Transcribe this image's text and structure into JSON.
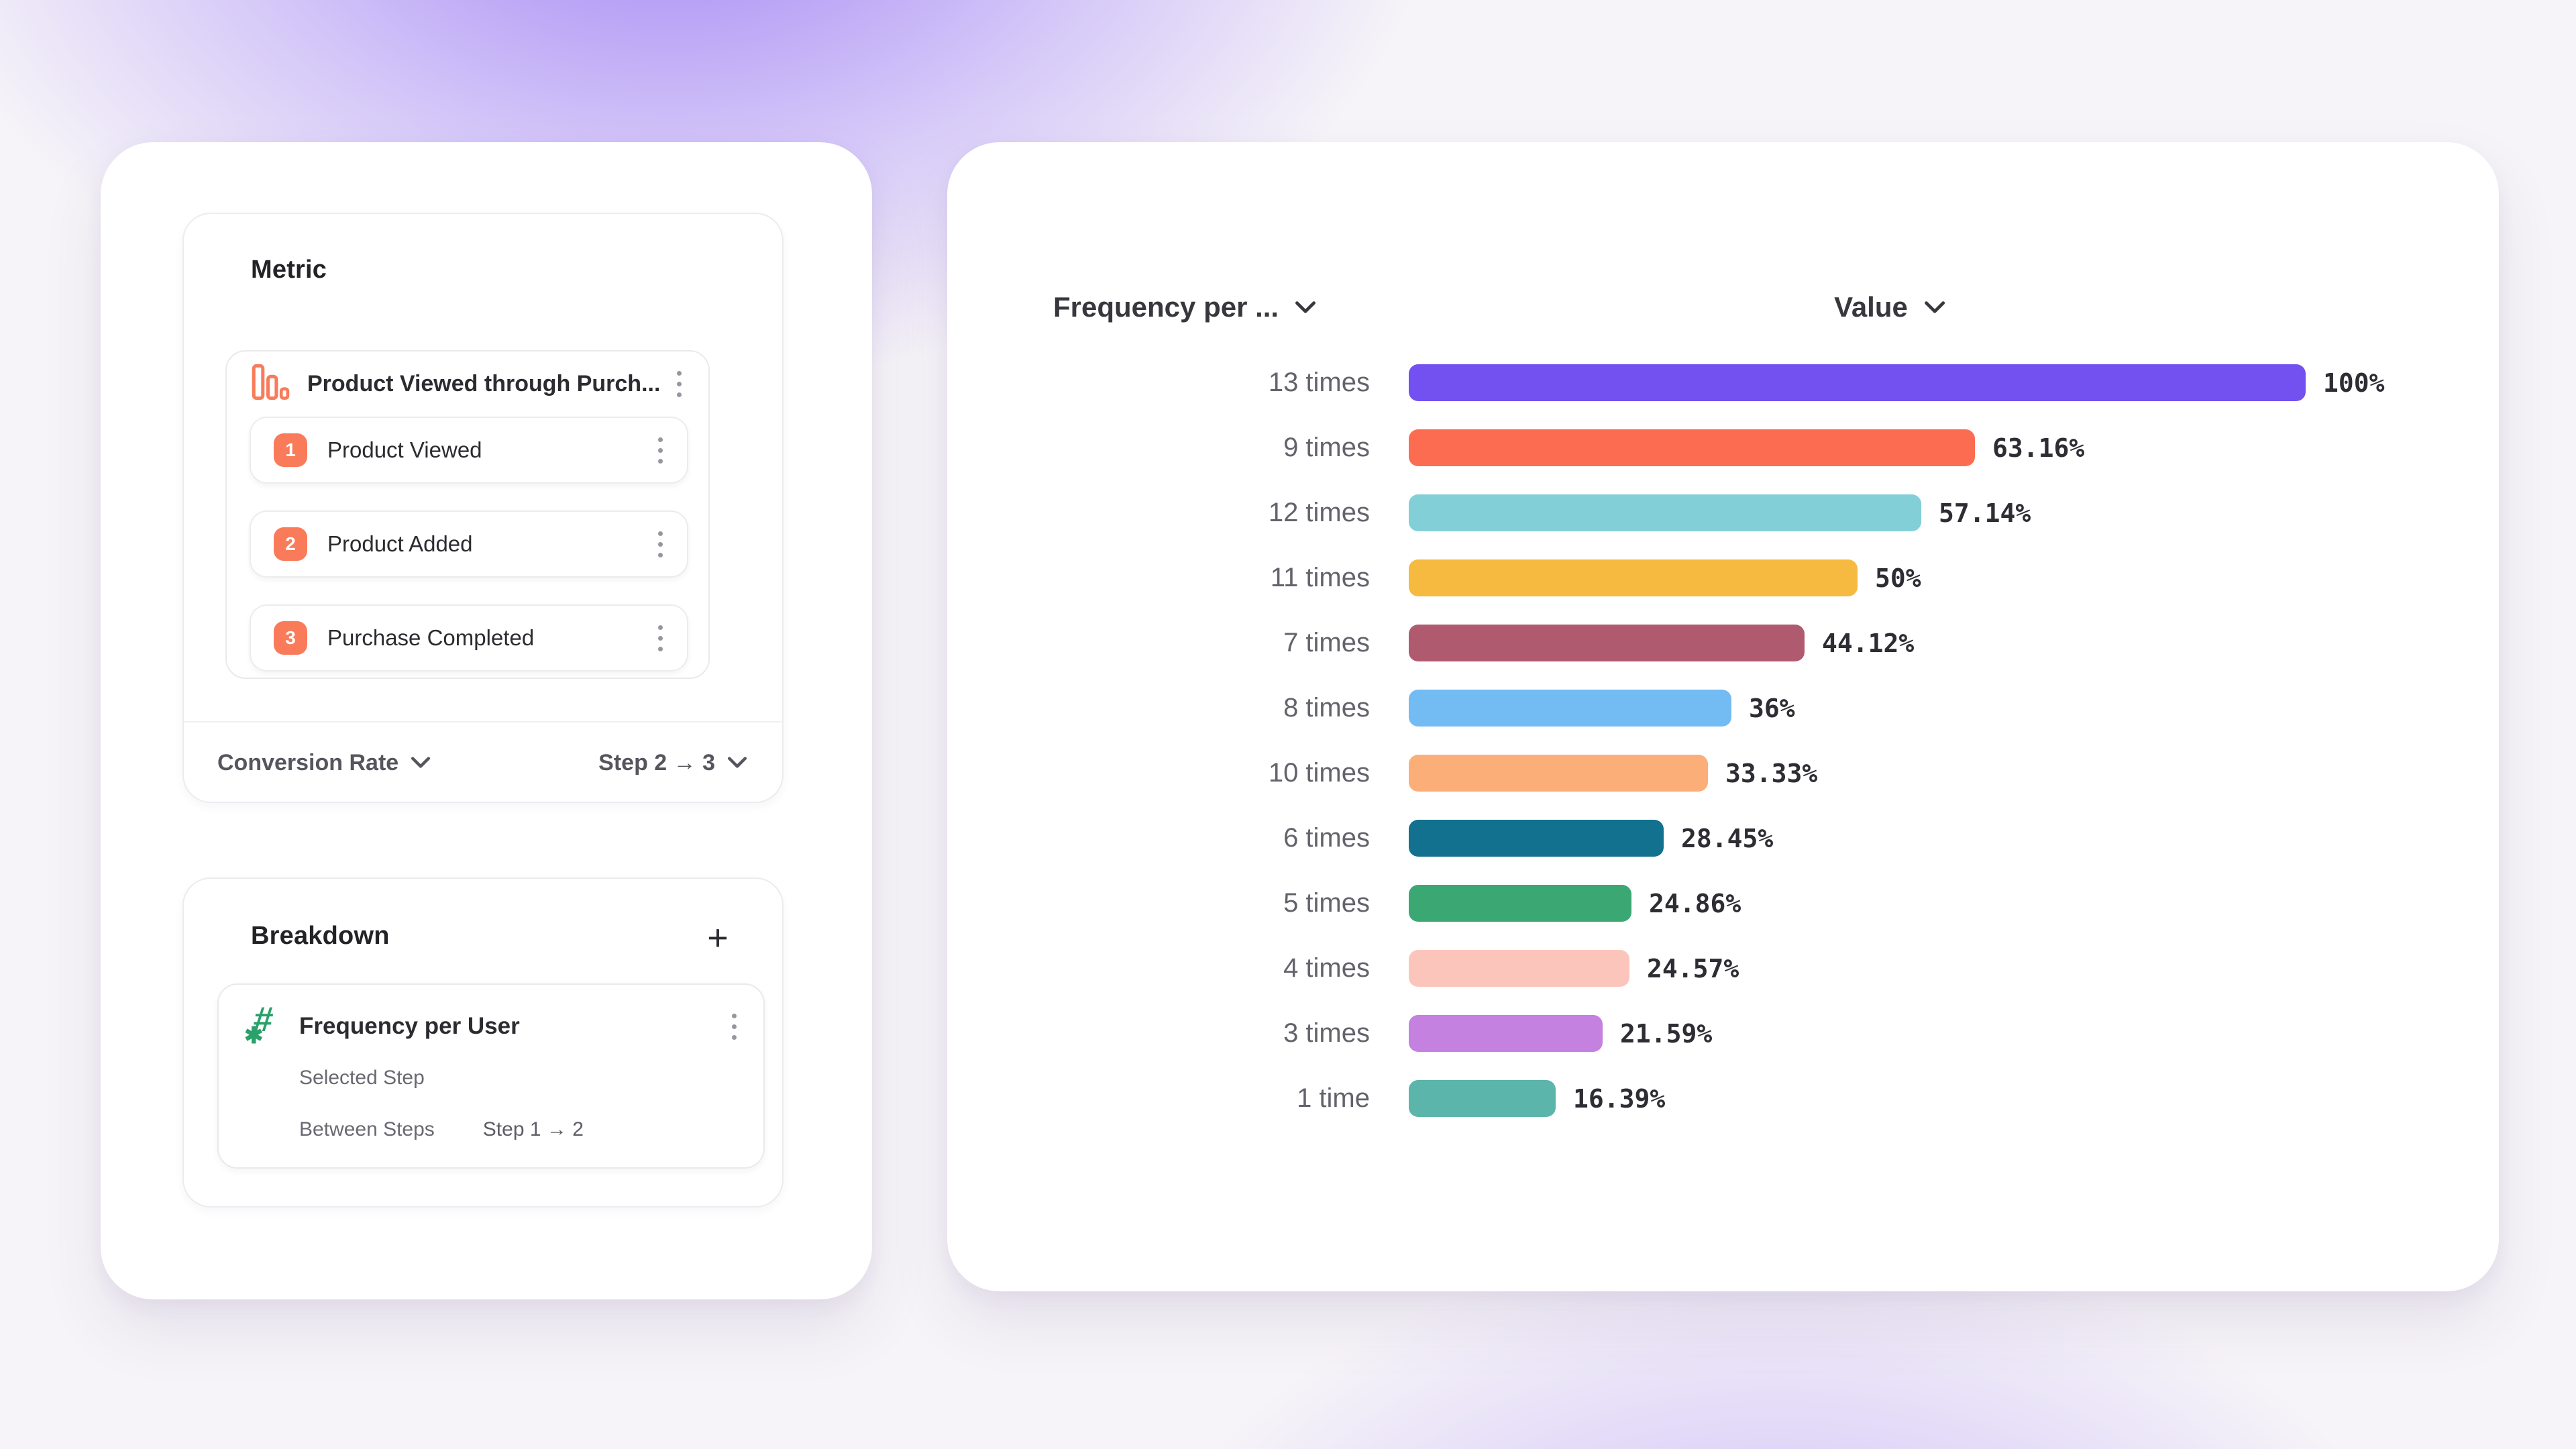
{
  "left_panel": {
    "metric": {
      "title": "Metric",
      "funnel": {
        "icon": "funnel-bars-icon",
        "icon_color": "#f97b59",
        "name": "Product Viewed through Purch...",
        "steps": [
          {
            "number": "1",
            "label": "Product Viewed"
          },
          {
            "number": "2",
            "label": "Product Added"
          },
          {
            "number": "3",
            "label": "Purchase Completed"
          }
        ]
      },
      "footer": {
        "measurement_label": "Conversion Rate",
        "step_range_label": "Step 2 → 3"
      }
    },
    "breakdown": {
      "title": "Breakdown",
      "add_button_label": "+",
      "item": {
        "icon": "hash-numeric-icon",
        "icon_color": "#2aa06a",
        "name": "Frequency per User",
        "selected_step_label": "Selected Step",
        "between_steps_label": "Between Steps",
        "between_steps_value": "Step 1 → 2"
      }
    }
  },
  "chart_panel": {
    "category_header": "Frequency per ...",
    "value_header": "Value"
  },
  "chart_data": {
    "type": "bar",
    "orientation": "horizontal",
    "title": "",
    "xlabel": "Value",
    "ylabel": "Frequency per User",
    "xlim": [
      0,
      100
    ],
    "grid": false,
    "legend": "none",
    "categories": [
      "13 times",
      "9 times",
      "12 times",
      "11 times",
      "7 times",
      "8 times",
      "10 times",
      "6 times",
      "5 times",
      "4 times",
      "3 times",
      "1 time"
    ],
    "values": [
      100,
      63.16,
      57.14,
      50,
      44.12,
      36,
      33.33,
      28.45,
      24.86,
      24.57,
      21.59,
      16.39
    ],
    "value_labels": [
      "100%",
      "63.16%",
      "57.14%",
      "50%",
      "44.12%",
      "36%",
      "33.33%",
      "28.45%",
      "24.86%",
      "24.57%",
      "21.59%",
      "16.39%"
    ],
    "bar_colors": [
      "#7251f0",
      "#fc6c50",
      "#82cfd8",
      "#f7ba40",
      "#b05a70",
      "#73bbf3",
      "#fbae78",
      "#11718f",
      "#3ba873",
      "#fcc5bc",
      "#c481e0",
      "#5bb5ab"
    ]
  }
}
